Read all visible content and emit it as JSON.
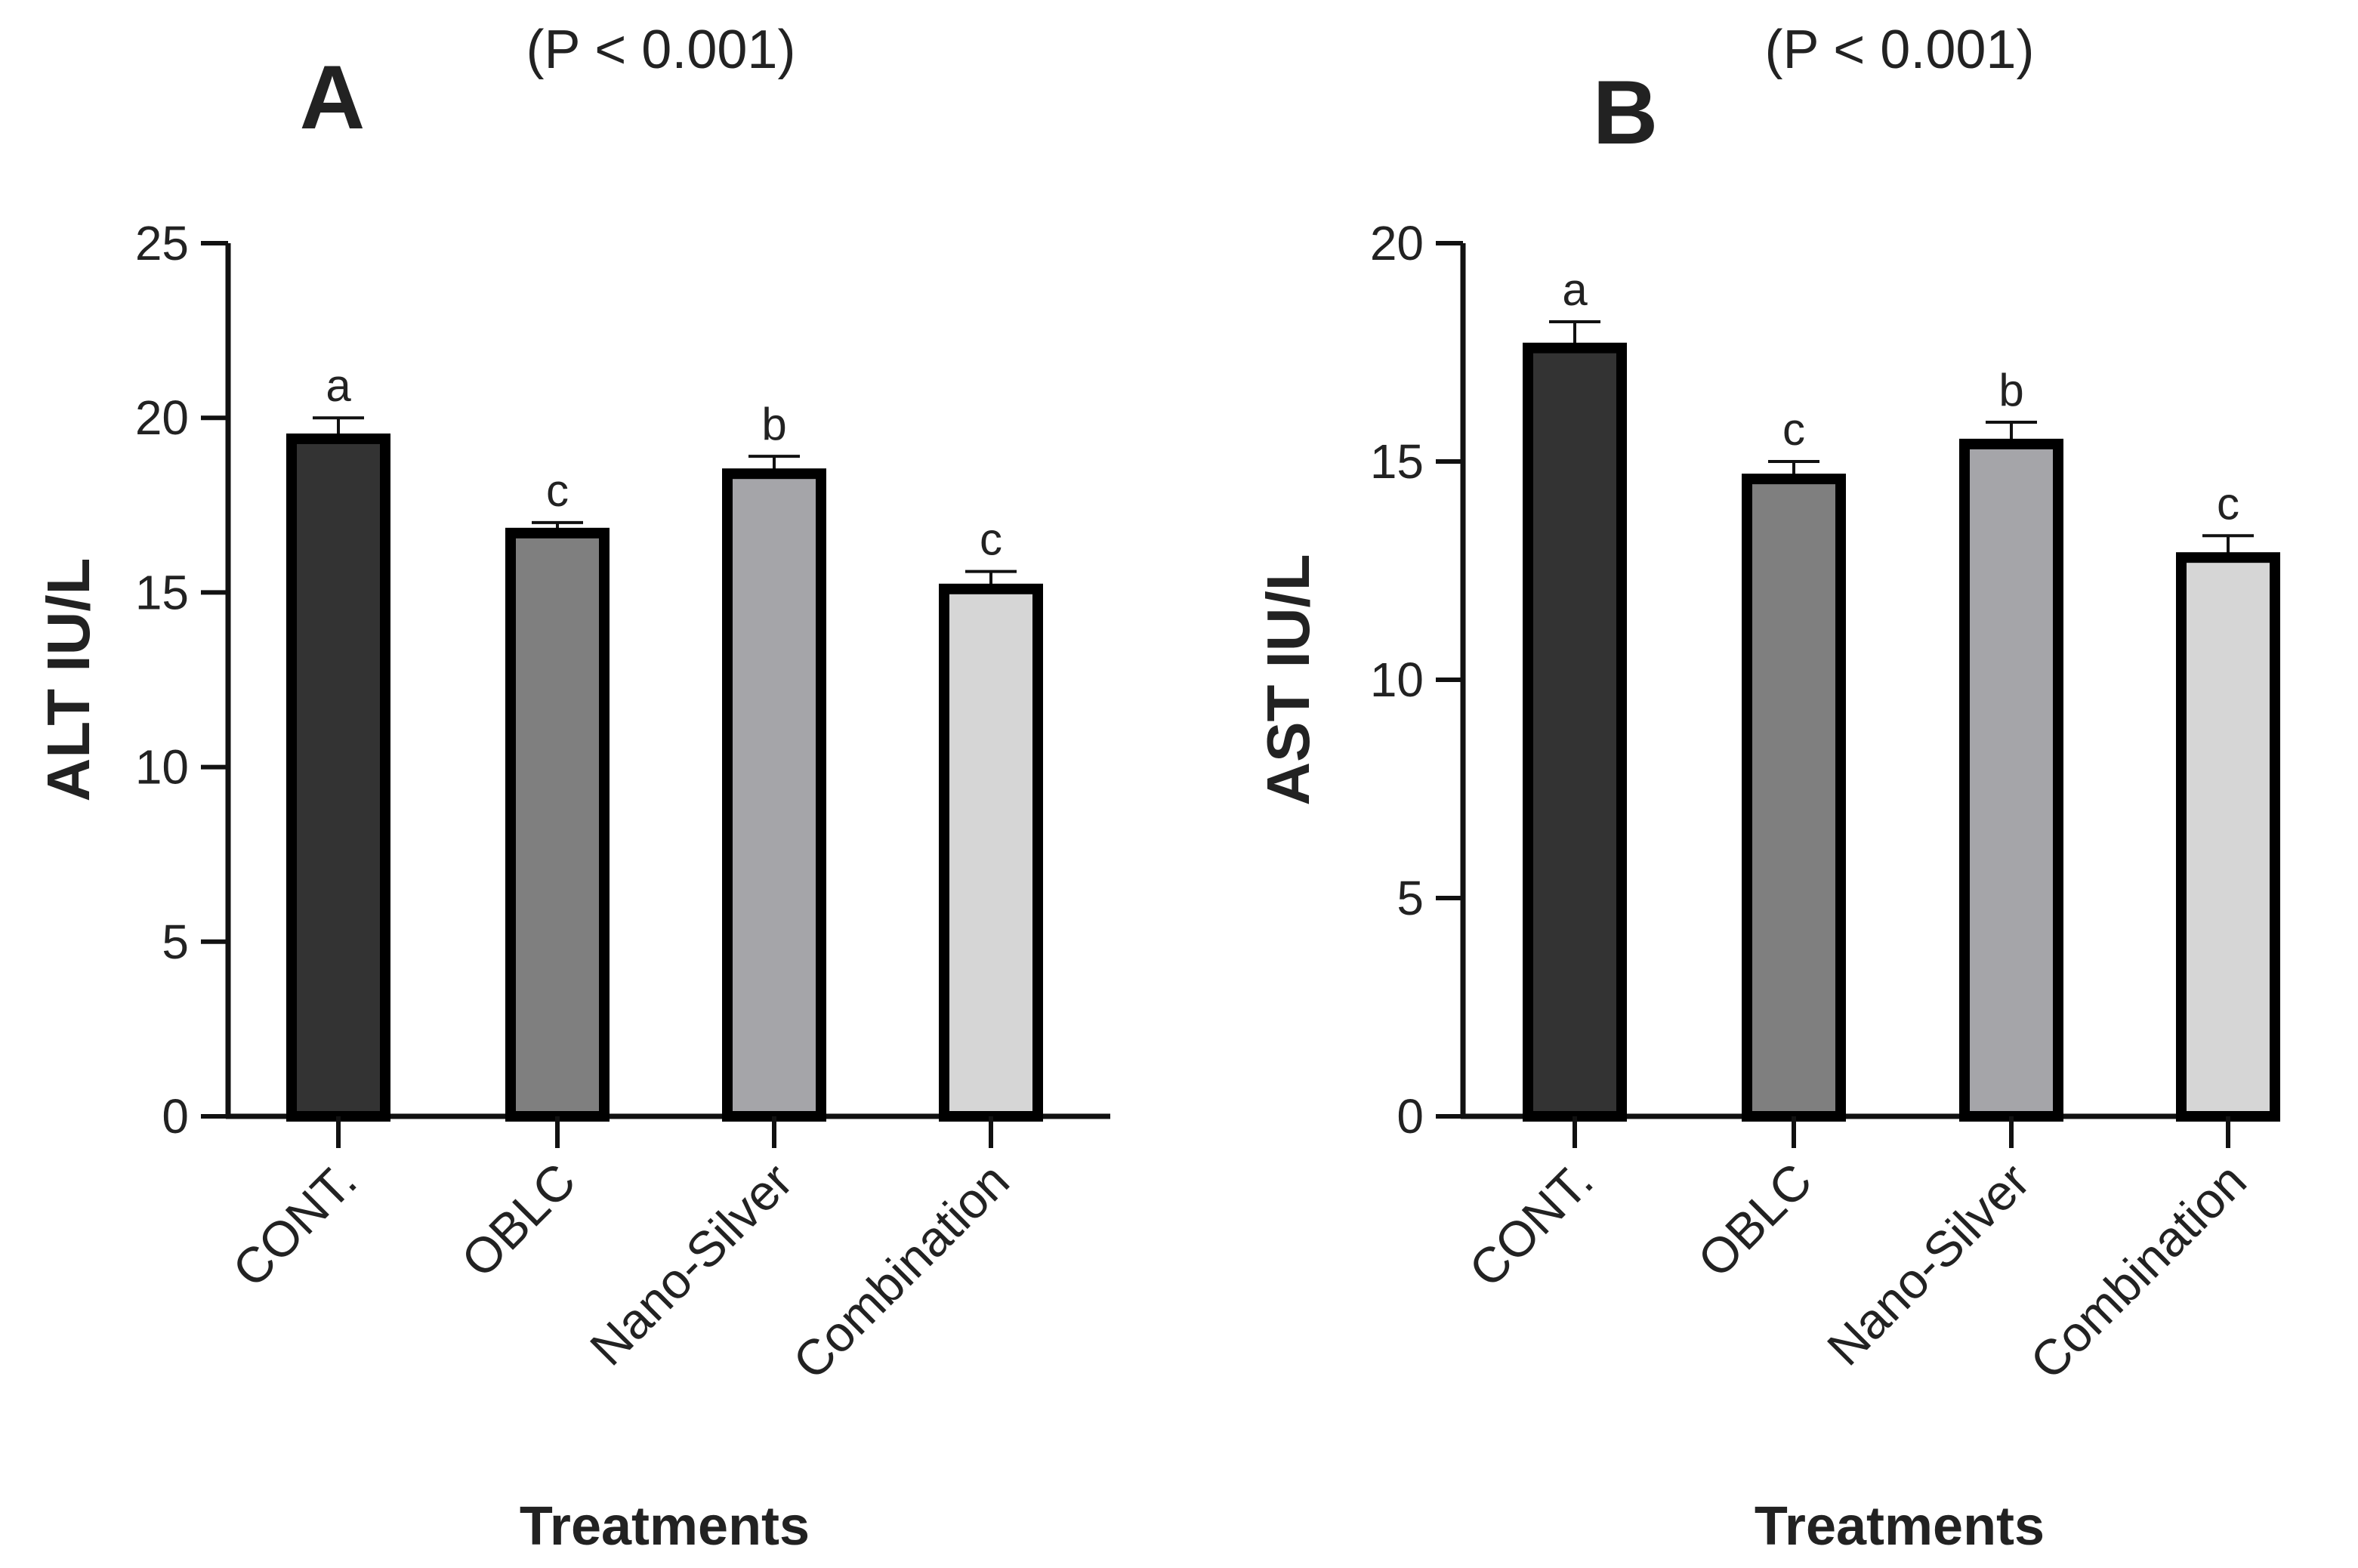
{
  "chart_data": [
    {
      "type": "bar",
      "panel_label": "A",
      "p_value": "(P < 0.001)",
      "xlabel": "Treatments",
      "ylabel": "ALT IU/L",
      "categories": [
        "CONT.",
        "OBLC",
        "Nano-Silver",
        "Combination"
      ],
      "values": [
        19.4,
        16.7,
        18.4,
        15.1
      ],
      "errors": [
        0.6,
        0.3,
        0.5,
        0.5
      ],
      "significance": [
        "a",
        "c",
        "b",
        "c"
      ],
      "ylim": [
        0,
        25
      ],
      "yticks": [
        0,
        5,
        10,
        15,
        20,
        25
      ],
      "bar_colors": [
        "#333333",
        "#7f7f7f",
        "#a5a5a9",
        "#d6d6d6"
      ]
    },
    {
      "type": "bar",
      "panel_label": "B",
      "p_value": "(P < 0.001)",
      "xlabel": "Treatments",
      "ylabel": "AST IU/L",
      "categories": [
        "CONT.",
        "OBLC",
        "Nano-Silver",
        "Combination"
      ],
      "values": [
        17.6,
        14.6,
        15.4,
        12.8
      ],
      "errors": [
        0.6,
        0.4,
        0.5,
        0.5
      ],
      "significance": [
        "a",
        "c",
        "b",
        "c"
      ],
      "ylim": [
        0,
        20
      ],
      "yticks": [
        0,
        5,
        10,
        15,
        20
      ],
      "bar_colors": [
        "#333333",
        "#7f7f7f",
        "#a5a5a9",
        "#d6d6d6"
      ]
    }
  ]
}
